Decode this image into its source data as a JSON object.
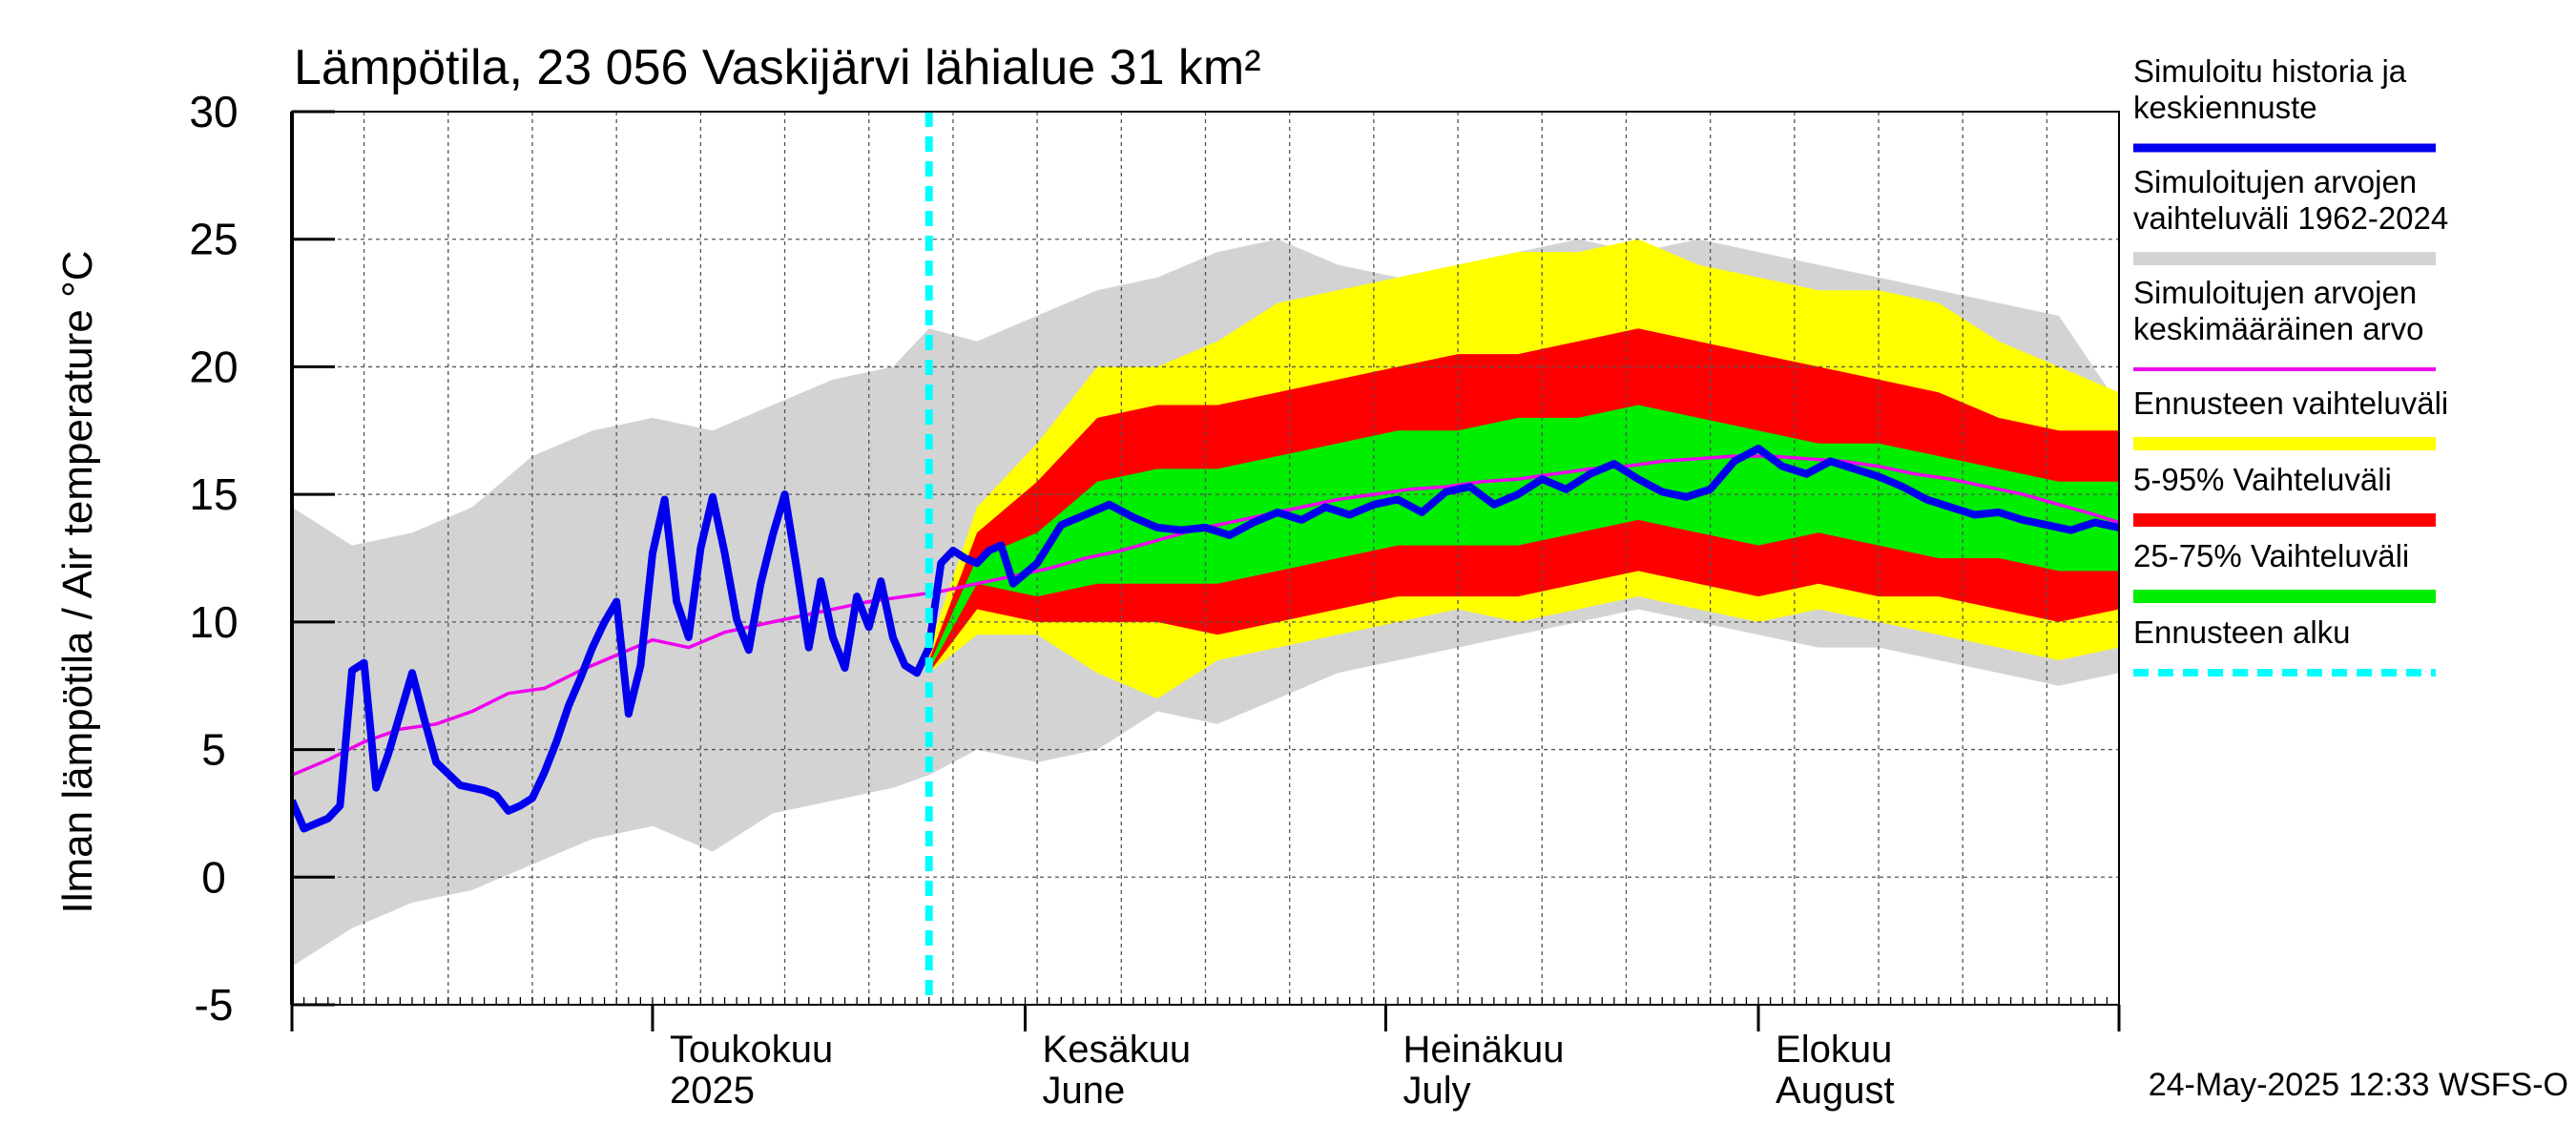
{
  "chart_data": {
    "type": "area",
    "title": "Lämpötila, 23 056 Vaskijärvi lähialue 31 km²",
    "ylabel": "Ilman lämpötila / Air temperature   °C",
    "xlabel": "",
    "ylim": [
      -5,
      30
    ],
    "yticks": [
      -5,
      0,
      5,
      10,
      15,
      20,
      25,
      30
    ],
    "x_axis": {
      "start": "2025-04-01",
      "end": "2025-08-31"
    },
    "month_labels": [
      {
        "date": "2025-05-01",
        "line1": "Toukokuu",
        "line2": "2025"
      },
      {
        "date": "2025-06-01",
        "line1": "Kesäkuu",
        "line2": "June"
      },
      {
        "date": "2025-07-01",
        "line1": "Heinäkuu",
        "line2": "July"
      },
      {
        "date": "2025-08-01",
        "line1": "Elokuu",
        "line2": "August"
      }
    ],
    "forecast_start": "2025-05-24",
    "grid": true,
    "legend_position": "right",
    "timestamp": "24-May-2025 12:33 WSFS-O",
    "colors": {
      "hist_range": "#d3d3d3",
      "forecast_range": "#ffff00",
      "p5_95": "#ff0000",
      "p25_75": "#00ee00",
      "sim_mean": "#0000ee",
      "hist_mean": "#ee00ee",
      "forecast_start": "#00ffff"
    },
    "legend": [
      {
        "key": "sim_mean",
        "lines": [
          "Simuloitu historia ja",
          "keskiennuste"
        ],
        "style": "line"
      },
      {
        "key": "hist_range",
        "lines": [
          "Simuloitujen arvojen",
          "vaihteluväli 1962-2024"
        ],
        "style": "band"
      },
      {
        "key": "hist_mean",
        "lines": [
          "Simuloitujen arvojen",
          "keskimääräinen arvo"
        ],
        "style": "thin"
      },
      {
        "key": "forecast_range",
        "lines": [
          "Ennusteen vaihteluväli"
        ],
        "style": "band"
      },
      {
        "key": "p5_95",
        "lines": [
          "5-95% Vaihteluväli"
        ],
        "style": "band"
      },
      {
        "key": "p25_75",
        "lines": [
          "25-75% Vaihteluväli"
        ],
        "style": "band"
      },
      {
        "key": "forecast_start",
        "lines": [
          "Ennusteen alku"
        ],
        "style": "dashed"
      }
    ],
    "series": {
      "hist_range": {
        "name": "Simuloitujen arvojen vaihteluväli 1962-2024",
        "x": [
          "2025-04-01",
          "2025-04-06",
          "2025-04-11",
          "2025-04-16",
          "2025-04-21",
          "2025-04-26",
          "2025-05-01",
          "2025-05-06",
          "2025-05-11",
          "2025-05-16",
          "2025-05-21",
          "2025-05-24",
          "2025-05-28",
          "2025-06-02",
          "2025-06-07",
          "2025-06-12",
          "2025-06-17",
          "2025-06-22",
          "2025-06-27",
          "2025-07-02",
          "2025-07-07",
          "2025-07-12",
          "2025-07-17",
          "2025-07-22",
          "2025-07-27",
          "2025-08-01",
          "2025-08-06",
          "2025-08-11",
          "2025-08-16",
          "2025-08-21",
          "2025-08-26",
          "2025-08-31"
        ],
        "upper": [
          14.5,
          13.0,
          13.5,
          14.5,
          16.5,
          17.5,
          18.0,
          17.5,
          18.5,
          19.5,
          20.0,
          21.5,
          21.0,
          22.0,
          23.0,
          23.5,
          24.5,
          25.0,
          24.0,
          23.5,
          24.0,
          24.5,
          25.0,
          24.5,
          25.0,
          24.5,
          24.0,
          23.5,
          23.0,
          22.5,
          22.0,
          18.5
        ],
        "lower": [
          -3.5,
          -2.0,
          -1.0,
          -0.5,
          0.5,
          1.5,
          2.0,
          1.0,
          2.5,
          3.0,
          3.5,
          4.0,
          5.0,
          4.5,
          5.0,
          6.5,
          6.0,
          7.0,
          8.0,
          8.5,
          9.0,
          9.5,
          10.0,
          10.5,
          10.0,
          9.5,
          9.0,
          9.0,
          8.5,
          8.0,
          7.5,
          8.0
        ]
      },
      "forecast_range": {
        "name": "Ennusteen vaihteluväli",
        "x": [
          "2025-05-24",
          "2025-05-28",
          "2025-06-02",
          "2025-06-07",
          "2025-06-12",
          "2025-06-17",
          "2025-06-22",
          "2025-06-27",
          "2025-07-02",
          "2025-07-07",
          "2025-07-12",
          "2025-07-17",
          "2025-07-22",
          "2025-07-27",
          "2025-08-01",
          "2025-08-06",
          "2025-08-11",
          "2025-08-16",
          "2025-08-21",
          "2025-08-26",
          "2025-08-31"
        ],
        "upper": [
          9.0,
          14.5,
          17.0,
          20.0,
          20.0,
          21.0,
          22.5,
          23.0,
          23.5,
          24.0,
          24.5,
          24.5,
          25.0,
          24.0,
          23.5,
          23.0,
          23.0,
          22.5,
          21.0,
          20.0,
          19.0
        ],
        "lower": [
          8.0,
          9.5,
          9.5,
          8.0,
          7.0,
          8.5,
          9.0,
          9.5,
          10.0,
          10.5,
          10.0,
          10.5,
          11.0,
          10.5,
          10.0,
          10.5,
          10.0,
          9.5,
          9.0,
          8.5,
          9.0
        ]
      },
      "p5_95": {
        "name": "5-95% Vaihteluväli",
        "x": [
          "2025-05-24",
          "2025-05-28",
          "2025-06-02",
          "2025-06-07",
          "2025-06-12",
          "2025-06-17",
          "2025-06-22",
          "2025-06-27",
          "2025-07-02",
          "2025-07-07",
          "2025-07-12",
          "2025-07-17",
          "2025-07-22",
          "2025-07-27",
          "2025-08-01",
          "2025-08-06",
          "2025-08-11",
          "2025-08-16",
          "2025-08-21",
          "2025-08-26",
          "2025-08-31"
        ],
        "upper": [
          8.5,
          13.5,
          15.5,
          18.0,
          18.5,
          18.5,
          19.0,
          19.5,
          20.0,
          20.5,
          20.5,
          21.0,
          21.5,
          21.0,
          20.5,
          20.0,
          19.5,
          19.0,
          18.0,
          17.5,
          17.5
        ],
        "lower": [
          8.0,
          10.5,
          10.0,
          10.0,
          10.0,
          9.5,
          10.0,
          10.5,
          11.0,
          11.0,
          11.0,
          11.5,
          12.0,
          11.5,
          11.0,
          11.5,
          11.0,
          11.0,
          10.5,
          10.0,
          10.5
        ]
      },
      "p25_75": {
        "name": "25-75% Vaihteluväli",
        "x": [
          "2025-05-24",
          "2025-05-28",
          "2025-06-02",
          "2025-06-07",
          "2025-06-12",
          "2025-06-17",
          "2025-06-22",
          "2025-06-27",
          "2025-07-02",
          "2025-07-07",
          "2025-07-12",
          "2025-07-17",
          "2025-07-22",
          "2025-07-27",
          "2025-08-01",
          "2025-08-06",
          "2025-08-11",
          "2025-08-16",
          "2025-08-21",
          "2025-08-26",
          "2025-08-31"
        ],
        "upper": [
          8.3,
          12.5,
          13.5,
          15.5,
          16.0,
          16.0,
          16.5,
          17.0,
          17.5,
          17.5,
          18.0,
          18.0,
          18.5,
          18.0,
          17.5,
          17.0,
          17.0,
          16.5,
          16.0,
          15.5,
          15.5
        ],
        "lower": [
          8.1,
          11.5,
          11.0,
          11.5,
          11.5,
          11.5,
          12.0,
          12.5,
          13.0,
          13.0,
          13.0,
          13.5,
          14.0,
          13.5,
          13.0,
          13.5,
          13.0,
          12.5,
          12.5,
          12.0,
          12.0
        ]
      },
      "sim_mean": {
        "name": "Simuloitu historia ja keskiennuste",
        "x": [
          "2025-04-01",
          "2025-04-02",
          "2025-04-03",
          "2025-04-04",
          "2025-04-05",
          "2025-04-06",
          "2025-04-07",
          "2025-04-08",
          "2025-04-09",
          "2025-04-11",
          "2025-04-12",
          "2025-04-13",
          "2025-04-15",
          "2025-04-17",
          "2025-04-18",
          "2025-04-19",
          "2025-04-20",
          "2025-04-21",
          "2025-04-22",
          "2025-04-23",
          "2025-04-24",
          "2025-04-25",
          "2025-04-26",
          "2025-04-27",
          "2025-04-28",
          "2025-04-29",
          "2025-04-30",
          "2025-05-01",
          "2025-05-02",
          "2025-05-03",
          "2025-05-04",
          "2025-05-05",
          "2025-05-06",
          "2025-05-07",
          "2025-05-08",
          "2025-05-09",
          "2025-05-10",
          "2025-05-11",
          "2025-05-12",
          "2025-05-13",
          "2025-05-14",
          "2025-05-15",
          "2025-05-16",
          "2025-05-17",
          "2025-05-18",
          "2025-05-19",
          "2025-05-20",
          "2025-05-21",
          "2025-05-22",
          "2025-05-23",
          "2025-05-24",
          "2025-05-25",
          "2025-05-26",
          "2025-05-27",
          "2025-05-28",
          "2025-05-29",
          "2025-05-30",
          "2025-05-31",
          "2025-06-02",
          "2025-06-04",
          "2025-06-06",
          "2025-06-08",
          "2025-06-10",
          "2025-06-12",
          "2025-06-14",
          "2025-06-16",
          "2025-06-18",
          "2025-06-20",
          "2025-06-22",
          "2025-06-24",
          "2025-06-26",
          "2025-06-28",
          "2025-06-30",
          "2025-07-02",
          "2025-07-04",
          "2025-07-06",
          "2025-07-08",
          "2025-07-10",
          "2025-07-12",
          "2025-07-14",
          "2025-07-16",
          "2025-07-18",
          "2025-07-20",
          "2025-07-22",
          "2025-07-24",
          "2025-07-26",
          "2025-07-28",
          "2025-07-30",
          "2025-08-01",
          "2025-08-03",
          "2025-08-05",
          "2025-08-07",
          "2025-08-09",
          "2025-08-11",
          "2025-08-13",
          "2025-08-15",
          "2025-08-17",
          "2025-08-19",
          "2025-08-21",
          "2025-08-23",
          "2025-08-25",
          "2025-08-27",
          "2025-08-29",
          "2025-08-31"
        ],
        "values": [
          3.0,
          1.9,
          2.1,
          2.3,
          2.8,
          8.1,
          8.4,
          3.5,
          4.8,
          8.0,
          6.2,
          4.5,
          3.6,
          3.4,
          3.2,
          2.6,
          2.8,
          3.1,
          4.1,
          5.3,
          6.7,
          7.8,
          9.0,
          10.0,
          10.8,
          6.4,
          8.3,
          12.7,
          14.8,
          10.8,
          9.4,
          12.9,
          14.9,
          12.7,
          10.1,
          8.9,
          11.5,
          13.4,
          15.0,
          12.1,
          9.0,
          11.6,
          9.4,
          8.2,
          11.0,
          9.8,
          11.6,
          9.4,
          8.3,
          8.0,
          9.0,
          12.3,
          12.8,
          12.5,
          12.3,
          12.8,
          13.0,
          11.5,
          12.3,
          13.8,
          14.2,
          14.6,
          14.1,
          13.7,
          13.6,
          13.7,
          13.4,
          13.9,
          14.3,
          14.0,
          14.5,
          14.2,
          14.6,
          14.8,
          14.3,
          15.1,
          15.3,
          14.6,
          15.0,
          15.6,
          15.2,
          15.8,
          16.2,
          15.6,
          15.1,
          14.9,
          15.2,
          16.3,
          16.8,
          16.1,
          15.8,
          16.3,
          16.0,
          15.7,
          15.3,
          14.8,
          14.5,
          14.2,
          14.3,
          14.0,
          13.8,
          13.6,
          13.9,
          13.7
        ]
      },
      "hist_mean": {
        "name": "Simuloitujen arvojen keskimääräinen arvo",
        "x": [
          "2025-04-01",
          "2025-04-04",
          "2025-04-07",
          "2025-04-10",
          "2025-04-13",
          "2025-04-16",
          "2025-04-19",
          "2025-04-22",
          "2025-04-25",
          "2025-04-28",
          "2025-05-01",
          "2025-05-04",
          "2025-05-07",
          "2025-05-10",
          "2025-05-13",
          "2025-05-16",
          "2025-05-19",
          "2025-05-22",
          "2025-05-25",
          "2025-05-28",
          "2025-05-31",
          "2025-06-03",
          "2025-06-06",
          "2025-06-09",
          "2025-06-12",
          "2025-06-15",
          "2025-06-18",
          "2025-06-21",
          "2025-06-24",
          "2025-06-27",
          "2025-06-30",
          "2025-07-03",
          "2025-07-06",
          "2025-07-09",
          "2025-07-12",
          "2025-07-15",
          "2025-07-18",
          "2025-07-21",
          "2025-07-24",
          "2025-07-27",
          "2025-07-30",
          "2025-08-02",
          "2025-08-05",
          "2025-08-08",
          "2025-08-11",
          "2025-08-14",
          "2025-08-17",
          "2025-08-20",
          "2025-08-23",
          "2025-08-26",
          "2025-08-29",
          "2025-08-31"
        ],
        "values": [
          4.0,
          4.6,
          5.3,
          5.8,
          6.0,
          6.5,
          7.2,
          7.4,
          8.1,
          8.7,
          9.3,
          9.0,
          9.6,
          9.9,
          10.2,
          10.5,
          10.8,
          11.0,
          11.2,
          11.5,
          11.8,
          12.1,
          12.5,
          12.8,
          13.2,
          13.6,
          13.9,
          14.2,
          14.5,
          14.8,
          15.0,
          15.2,
          15.3,
          15.5,
          15.6,
          15.8,
          16.0,
          16.1,
          16.3,
          16.4,
          16.5,
          16.5,
          16.4,
          16.3,
          16.1,
          15.8,
          15.6,
          15.3,
          15.0,
          14.6,
          14.2,
          13.9
        ]
      }
    }
  }
}
